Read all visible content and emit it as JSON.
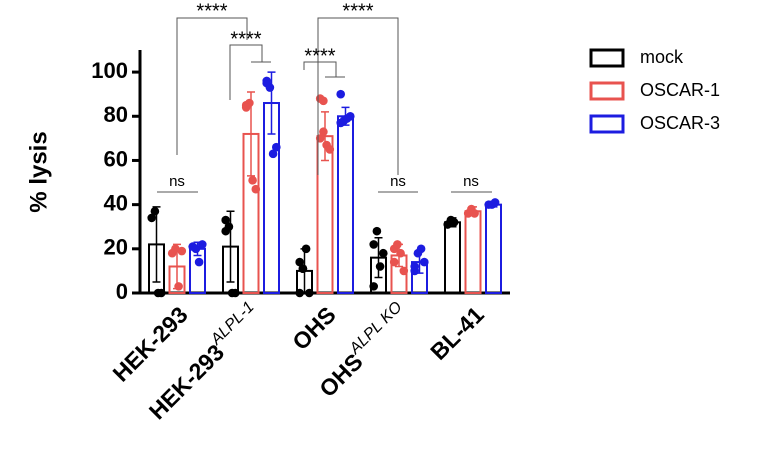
{
  "chart_data": {
    "type": "bar",
    "y_label": "% lysis",
    "categories": [
      "HEK-293",
      "HEK-293",
      "OHS",
      "OHS",
      "BL-41"
    ],
    "category_superscripts": [
      null,
      "ALPL-1",
      null,
      "ALPL KO",
      null
    ],
    "ylim": [
      0,
      110
    ],
    "yticks": [
      0,
      20,
      40,
      60,
      80,
      100
    ],
    "legend": "right",
    "series": [
      {
        "name": "mock",
        "color": "#000000",
        "values": [
          22,
          21,
          10,
          16,
          32
        ],
        "errors": [
          17,
          16,
          10,
          9,
          2
        ],
        "points": [
          [
            34,
            37,
            0,
            0
          ],
          [
            33,
            30,
            0,
            0,
            28
          ],
          [
            14,
            11,
            20,
            0,
            0,
            11
          ],
          [
            22,
            28,
            12,
            18,
            3
          ],
          [
            31,
            33,
            32
          ]
        ]
      },
      {
        "name": "OSCAR-1",
        "color": "#e8534f",
        "values": [
          12,
          72,
          71,
          17,
          37
        ],
        "errors": [
          10,
          19,
          11,
          5,
          2
        ],
        "points": [
          [
            18,
            20,
            3,
            19
          ],
          [
            85,
            86,
            51,
            47,
            84
          ],
          [
            88,
            87,
            67,
            65,
            70,
            73
          ],
          [
            20,
            22,
            18,
            10,
            14
          ],
          [
            36,
            38,
            36
          ]
        ]
      },
      {
        "name": "OSCAR-3",
        "color": "#1c1ce0",
        "values": [
          20,
          86,
          80,
          14,
          40
        ],
        "errors": [
          3,
          14,
          4,
          5,
          1
        ],
        "points": [
          [
            21,
            20,
            14,
            22
          ],
          [
            95,
            93,
            63,
            66,
            96
          ],
          [
            90,
            78,
            79,
            80,
            77
          ],
          [
            12,
            18,
            20,
            14,
            10
          ],
          [
            40,
            40,
            41
          ]
        ]
      }
    ],
    "annotations": [
      "****",
      "****",
      "****",
      "****",
      "ns",
      "ns",
      "ns"
    ]
  }
}
